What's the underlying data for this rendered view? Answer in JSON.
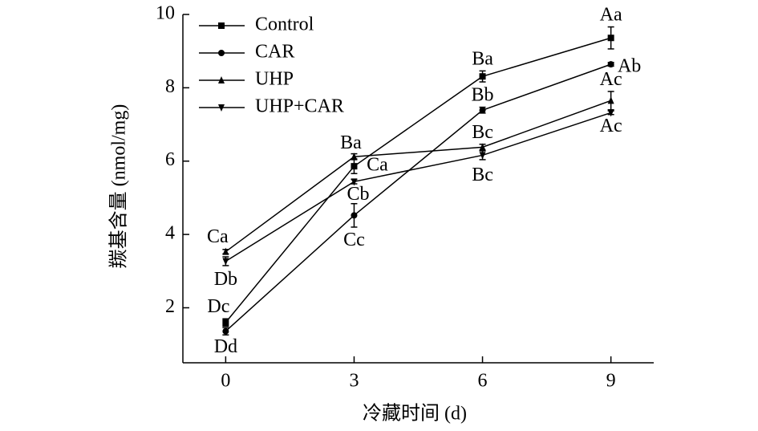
{
  "chart_data": {
    "type": "line",
    "x_label": "冷藏时间 (d)",
    "y_label": "羰基含量 (nmol/mg)",
    "x": [
      0,
      3,
      6,
      9
    ],
    "xlim": [
      -1,
      10
    ],
    "xticks": [
      0,
      3,
      6,
      9
    ],
    "ylim": [
      0.5,
      10
    ],
    "yticks": [
      2,
      4,
      6,
      8,
      10
    ],
    "legend_position": "upper left",
    "series": [
      {
        "name": "Control",
        "color": "#000000",
        "marker": "square",
        "values": [
          1.6,
          5.86,
          8.31,
          9.36
        ],
        "errors": [
          0.1,
          0.2,
          0.15,
          0.3
        ],
        "point_labels": [
          "Dc",
          "Ca",
          "Ba",
          "Aa"
        ]
      },
      {
        "name": "CAR",
        "color": "#000000",
        "marker": "circle",
        "values": [
          1.36,
          4.52,
          7.39,
          8.64
        ],
        "errors": [
          0.1,
          0.32,
          0.08,
          0.05
        ],
        "point_labels": [
          "Dd",
          "Cc",
          "Bb",
          "Ab"
        ]
      },
      {
        "name": "UHP",
        "color": "#000000",
        "marker": "triangle-up",
        "values": [
          3.53,
          6.12,
          6.38,
          7.65
        ],
        "errors": [
          0.06,
          0.08,
          0.08,
          0.25
        ],
        "point_labels": [
          "Ca",
          "Ba",
          "Bc",
          "Ac"
        ]
      },
      {
        "name": "UHP+CAR",
        "color": "#000000",
        "marker": "triangle-down",
        "values": [
          3.27,
          5.44,
          6.16,
          7.32
        ],
        "errors": [
          0.12,
          0.06,
          0.12,
          0.05
        ],
        "point_labels": [
          "Db",
          "Cb",
          "Bc",
          "Ac"
        ]
      }
    ]
  }
}
